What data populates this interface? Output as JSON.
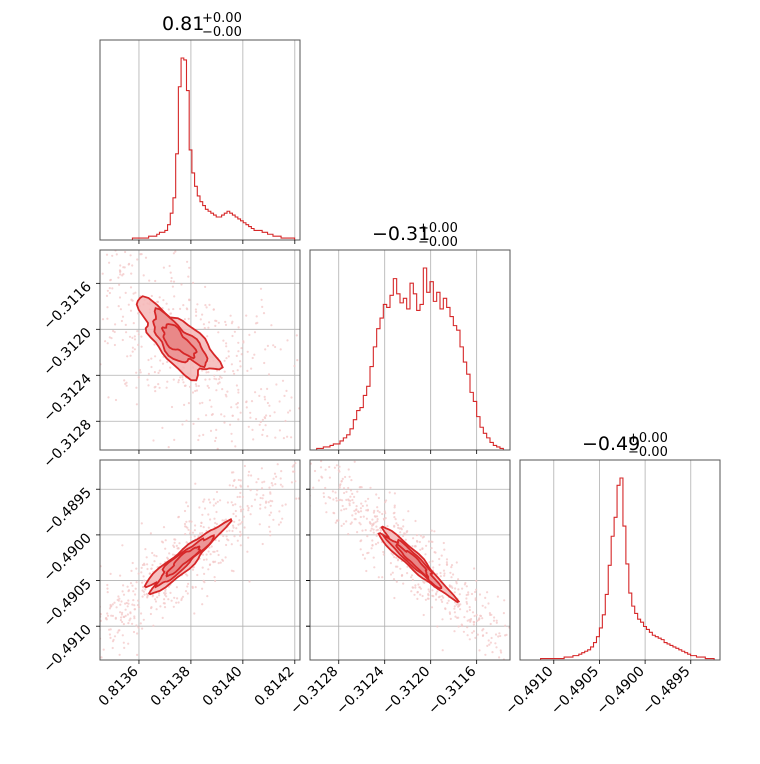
{
  "colors": {
    "primary": "#d62728",
    "fill": "#f4b6b6",
    "fill_dark": "#e88585",
    "scatter": "#f3c7c7",
    "grid": "#b0b0b0"
  },
  "panel_titles": [
    {
      "main": "0.81",
      "sup": "+0.00",
      "sub": "−0.00"
    },
    {
      "main": "−0.31",
      "sup": "+0.00",
      "sub": "−0.00"
    },
    {
      "main": "−0.49",
      "sup": "+0.00",
      "sub": "−0.00"
    }
  ],
  "chart_data": {
    "type": "corner",
    "parameters": [
      {
        "range": [
          0.81345,
          0.81422
        ],
        "ticks": [
          0.8136,
          0.8138,
          0.814,
          0.8142
        ],
        "tick_labels": [
          "0.8136",
          "0.8138",
          "0.8140",
          "0.8142"
        ]
      },
      {
        "range": [
          -0.31305,
          -0.31131
        ],
        "ticks": [
          -0.3116,
          -0.312,
          -0.3124,
          -0.3128
        ],
        "tick_labels": [
          "−0.3116",
          "−0.3120",
          "−0.3124",
          "−0.3128"
        ]
      },
      {
        "range": [
          -0.49137,
          -0.48918
        ],
        "ticks": [
          -0.4895,
          -0.49,
          -0.4905,
          -0.491
        ],
        "tick_labels": [
          "−0.4895",
          "−0.4900",
          "−0.4905",
          "−0.4910"
        ]
      }
    ],
    "histograms": [
      {
        "param": 0,
        "values": [
          0,
          0,
          0,
          0,
          0,
          0,
          0,
          0,
          0,
          0,
          0,
          0,
          1,
          1,
          1,
          1,
          1,
          1,
          2,
          2,
          2,
          3,
          4,
          4,
          5,
          8,
          14,
          22,
          45,
          80,
          95,
          94,
          78,
          47,
          35,
          28,
          23,
          20,
          18,
          16,
          15,
          14,
          13,
          12,
          12,
          13,
          14,
          15,
          14,
          13,
          12,
          11,
          10,
          9,
          8,
          7,
          6,
          5,
          5,
          5,
          4,
          4,
          3,
          3,
          2,
          2,
          2,
          1,
          1,
          1,
          1,
          1,
          0,
          0
        ]
      },
      {
        "param": 1,
        "values": [
          0,
          0,
          1,
          1,
          2,
          2,
          3,
          4,
          4,
          6,
          8,
          10,
          14,
          20,
          26,
          28,
          36,
          42,
          55,
          68,
          80,
          87,
          96,
          94,
          102,
          113,
          103,
          97,
          100,
          93,
          110,
          103,
          92,
          96,
          120,
          104,
          111,
          98,
          104,
          93,
          100,
          94,
          88,
          82,
          79,
          68,
          58,
          50,
          38,
          32,
          22,
          15,
          11,
          8,
          5,
          3,
          2,
          1,
          0,
          0
        ]
      },
      {
        "param": 2,
        "values": [
          0,
          0,
          0,
          0,
          0,
          0,
          0,
          1,
          1,
          1,
          1,
          1,
          1,
          1,
          1,
          2,
          2,
          2,
          3,
          3,
          4,
          5,
          6,
          7,
          9,
          12,
          16,
          22,
          31,
          45,
          65,
          85,
          98,
          120,
          125,
          92,
          66,
          46,
          37,
          32,
          28,
          26,
          23,
          21,
          19,
          17,
          16,
          15,
          14,
          12,
          11,
          10,
          9,
          8,
          7,
          6,
          5,
          4,
          3,
          3,
          2,
          2,
          2,
          1,
          1,
          1,
          0,
          0
        ]
      }
    ],
    "density_2d": [
      {
        "x": 0,
        "y": 1,
        "mean": [
          0.81375,
          -0.3121
        ],
        "sd": [
          0.00012,
          0.00026
        ],
        "corr": -0.72
      },
      {
        "x": 0,
        "y": 2,
        "mean": [
          0.81377,
          -0.49028
        ],
        "sd": [
          0.00012,
          0.0003
        ],
        "corr": 0.93
      },
      {
        "x": 1,
        "y": 2,
        "mean": [
          -0.31215,
          -0.49028
        ],
        "sd": [
          0.00025,
          0.0003
        ],
        "corr": -0.95
      }
    ]
  }
}
